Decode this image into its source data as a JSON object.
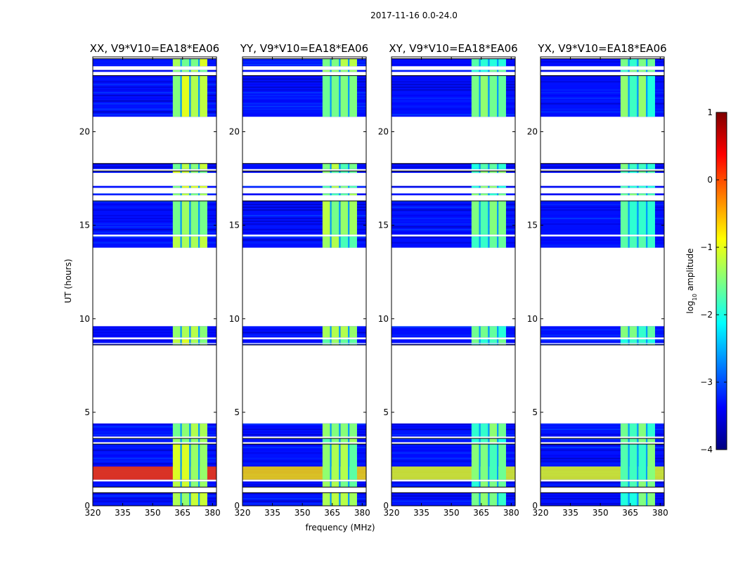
{
  "sup_title": "2017-11-16 0.0-24.0",
  "colorbar_colors": [
    "#00007f",
    "#0000ff",
    "#0080ff",
    "#00ffff",
    "#80ff80",
    "#ffff00",
    "#ff8000",
    "#ff0000",
    "#7f0000"
  ],
  "chart_data": {
    "type": "heatmap",
    "xlabel": "frequency (MHz)",
    "ylabel": "UT (hours)",
    "xlim": [
      320,
      382
    ],
    "ylim": [
      0,
      24
    ],
    "xticks": [
      "320",
      "335",
      "350",
      "365",
      "380"
    ],
    "yticks": [
      "0",
      "5",
      "10",
      "15",
      "20"
    ],
    "colorbar": {
      "label_prefix": "log",
      "label_sub": "10",
      "label_suffix": " amplitude",
      "range": [
        -4,
        1
      ],
      "ticks": [
        "1",
        "0",
        "−1",
        "−2",
        "−3",
        "−4"
      ]
    },
    "rfi_freq_range_MHz": [
      360,
      379
    ],
    "rfi_band_centers_MHz": [
      362,
      366.5,
      371,
      375.5
    ],
    "data_blocks_UT_hours": [
      [
        0.0,
        0.7
      ],
      [
        1.0,
        1.3
      ],
      [
        1.4,
        3.3
      ],
      [
        3.4,
        3.6
      ],
      [
        3.7,
        4.4
      ],
      [
        8.6,
        8.65
      ],
      [
        8.7,
        8.9
      ],
      [
        9.0,
        9.6
      ],
      [
        13.8,
        14.4
      ],
      [
        14.5,
        16.3
      ],
      [
        16.6,
        16.7
      ],
      [
        17.0,
        17.1
      ],
      [
        17.8,
        17.9
      ],
      [
        18.0,
        18.3
      ],
      [
        20.8,
        23.0
      ],
      [
        23.2,
        23.3
      ],
      [
        23.5,
        23.9
      ]
    ],
    "panels": [
      {
        "title": "XX, V9*V10=EA18*EA06",
        "rfi_level": -1.3,
        "low_ut_level": 0.1
      },
      {
        "title": "YY, V9*V10=EA18*EA06",
        "rfi_level": -1.5,
        "low_ut_level": -0.7
      },
      {
        "title": "XY, V9*V10=EA18*EA06",
        "rfi_level": -1.7,
        "low_ut_level": -1.0
      },
      {
        "title": "YX, V9*V10=EA18*EA06",
        "rfi_level": -1.7,
        "low_ut_level": -1.0
      }
    ],
    "background_level": -3.3
  }
}
